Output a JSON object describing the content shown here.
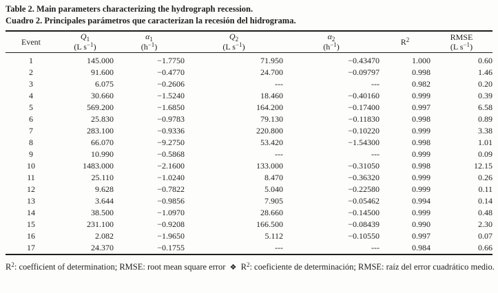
{
  "title": {
    "en": "Table 2. Main parameters characterizing the hydrograph recession.",
    "es": "Cuadro 2. Principales parámetros que caracterizan la recesión del hidrograma."
  },
  "table": {
    "columns": [
      {
        "label": "Event"
      },
      {
        "main": "Q",
        "sub": "1",
        "unit_pre": "(L s",
        "unit_sup": "−1",
        "unit_post": ")"
      },
      {
        "main": "α",
        "sub": "1",
        "unit_pre": "(h",
        "unit_sup": "−1",
        "unit_post": ")"
      },
      {
        "main": "Q",
        "sub": "2",
        "unit_pre": "(L s",
        "unit_sup": "−1",
        "unit_post": ")"
      },
      {
        "main": "α",
        "sub": "2",
        "unit_pre": "(h",
        "unit_sup": "−1",
        "unit_post": ")"
      },
      {
        "main": "R",
        "sup": "2"
      },
      {
        "main": "RMSE",
        "unit_pre": "(L s",
        "unit_sup": "−1",
        "unit_post": ")"
      }
    ],
    "rows": [
      [
        "1",
        "145.000",
        "−1.7750",
        "71.950",
        "−0.43470",
        "1.000",
        "0.60"
      ],
      [
        "2",
        "91.600",
        "−0.4770",
        "24.700",
        "−0.09797",
        "0.998",
        "1.46"
      ],
      [
        "3",
        "6.075",
        "−0.2606",
        "---",
        "---",
        "0.982",
        "0.20"
      ],
      [
        "4",
        "30.660",
        "−1.5240",
        "18.460",
        "−0.40160",
        "0.999",
        "0.39"
      ],
      [
        "5",
        "569.200",
        "−1.6850",
        "164.200",
        "−0.17400",
        "0.997",
        "6.58"
      ],
      [
        "6",
        "25.830",
        "−0.9783",
        "79.130",
        "−0.11830",
        "0.998",
        "0.89"
      ],
      [
        "7",
        "283.100",
        "−0.9336",
        "220.800",
        "−0.10220",
        "0.999",
        "3.38"
      ],
      [
        "8",
        "66.070",
        "−9.2750",
        "53.420",
        "−1.54300",
        "0.998",
        "1.01"
      ],
      [
        "9",
        "10.990",
        "−0.5868",
        "---",
        "---",
        "0.999",
        "0.09"
      ],
      [
        "10",
        "1483.000",
        "−2.1600",
        "133.000",
        "−0.31050",
        "0.998",
        "12.15"
      ],
      [
        "11",
        "25.110",
        "−1.0240",
        "8.470",
        "−0.36320",
        "0.999",
        "0.26"
      ],
      [
        "12",
        "9.628",
        "−0.7822",
        "5.040",
        "−0.22580",
        "0.999",
        "0.11"
      ],
      [
        "13",
        "3.644",
        "−0.9856",
        "7.905",
        "−0.05462",
        "0.994",
        "0.14"
      ],
      [
        "14",
        "38.500",
        "−1.0970",
        "28.660",
        "−0.14500",
        "0.999",
        "0.48"
      ],
      [
        "15",
        "231.100",
        "−0.9208",
        "166.500",
        "−0.08439",
        "0.990",
        "2.30"
      ],
      [
        "16",
        "2.082",
        "−1.9650",
        "5.112",
        "−0.10550",
        "0.997",
        "0.07"
      ],
      [
        "17",
        "24.370",
        "−0.1755",
        "---",
        "---",
        "0.984",
        "0.66"
      ]
    ]
  },
  "footnote": {
    "r_main": "R",
    "r_sup": "2",
    "en_rest": ": coefficient of determination; RMSE: root mean square error",
    "sep": "❖",
    "es_rest": ": coeficiente de determinación; RMSE: raíz del error cuadrático medio."
  },
  "colors": {
    "text": "#1e1e1e",
    "rule": "#1c1c1c",
    "background": "#fdfdfc"
  }
}
